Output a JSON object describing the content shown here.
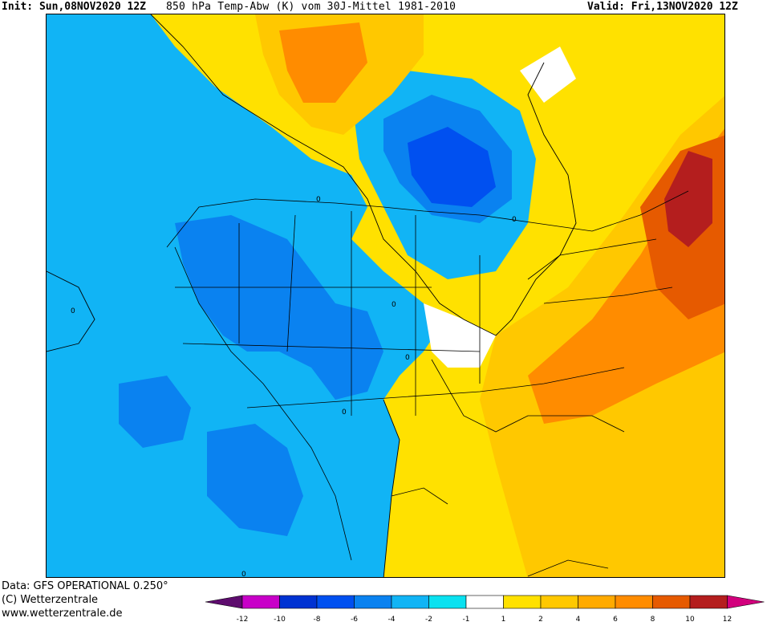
{
  "header": {
    "init": "Init: Sun,08NOV2020 12Z",
    "title": "850 hPa Temp-Abw (K) vom 30J-Mittel 1981-2010",
    "valid": "Valid: Fri,13NOV2020 12Z"
  },
  "footer": {
    "data_line": "Data: GFS OPERATIONAL 0.250°",
    "copyright": "(C) Wetterzentrale",
    "website": "www.wetterzentrale.de"
  },
  "map": {
    "contour_labels": [
      "0",
      "0",
      "0",
      "0",
      "0",
      "0",
      "0"
    ]
  },
  "colorbar": {
    "ticks": [
      "-12",
      "-10",
      "-8",
      "-6",
      "-4",
      "-2",
      "-1",
      "1",
      "2",
      "4",
      "6",
      "8",
      "10",
      "12"
    ],
    "colors": [
      "#5e0c6e",
      "#c800c8",
      "#0032d2",
      "#0050f0",
      "#0a82f0",
      "#11b4f5",
      "#0ae1f0",
      "#ffffff",
      "#ffe100",
      "#ffc800",
      "#ffaa00",
      "#ff8c00",
      "#e65a00",
      "#b41e1e",
      "#d2007d"
    ]
  }
}
